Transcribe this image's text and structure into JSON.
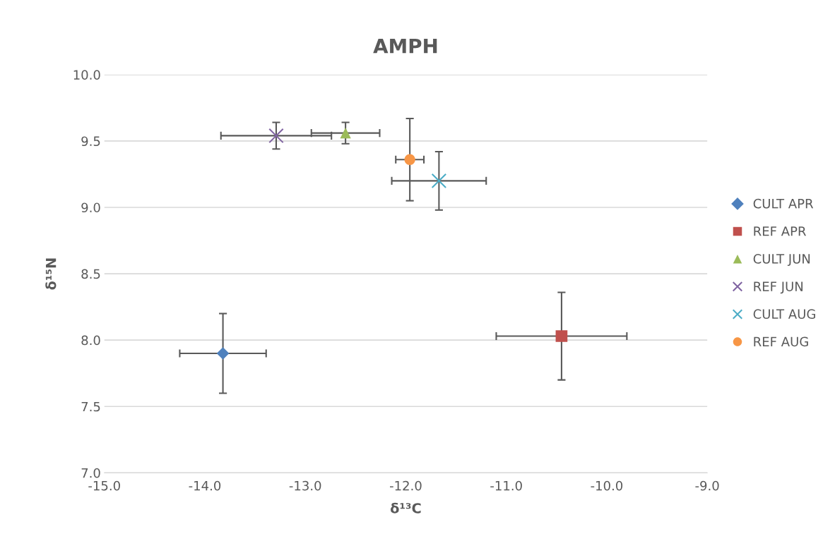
{
  "chart_data": {
    "type": "scatter",
    "title": "AMPH",
    "xlabel": "δ¹³C",
    "ylabel": "δ¹⁵N",
    "xlim": [
      -15.0,
      -9.0
    ],
    "xticks": [
      {
        "value": -15,
        "label": "-15.0"
      },
      {
        "value": -14,
        "label": "-14.0"
      },
      {
        "value": -13,
        "label": "-13.0"
      },
      {
        "value": -12,
        "label": "-12.0"
      },
      {
        "value": -11,
        "label": "-11.0"
      },
      {
        "value": -10,
        "label": "-10.0"
      },
      {
        "value": -9,
        "label": "-9.0"
      }
    ],
    "ylim": [
      7.0,
      10.0
    ],
    "yticks": [
      {
        "value": 7,
        "label": "7.0"
      },
      7.5,
      {
        "value": 8,
        "label": "8.0"
      },
      8.5,
      {
        "value": 9,
        "label": "9.0"
      },
      9.5,
      {
        "value": 10,
        "label": "10.0"
      }
    ],
    "grid": "y",
    "legend": "right",
    "series": [
      {
        "name": "CULT APR",
        "color": "#4f81bd",
        "marker": "diamond",
        "x": [
          -13.82
        ],
        "values": [
          7.9
        ],
        "xerrors": [
          0.43
        ],
        "errors": [
          0.3
        ]
      },
      {
        "name": "REF APR",
        "color": "#c0504d",
        "marker": "square",
        "x": [
          -10.45
        ],
        "values": [
          8.03
        ],
        "xerrors": [
          0.65
        ],
        "errors": [
          0.33
        ]
      },
      {
        "name": "CULT JUN",
        "color": "#9bbb59",
        "marker": "triangle",
        "x": [
          -12.6
        ],
        "values": [
          9.56
        ],
        "xerrors": [
          0.34
        ],
        "errors": [
          0.08
        ]
      },
      {
        "name": "REF JUN",
        "color": "#8064a2",
        "marker": "cross",
        "x": [
          -13.29
        ],
        "values": [
          9.54
        ],
        "xerrors": [
          0.55
        ],
        "errors": [
          0.1
        ]
      },
      {
        "name": "CULT AUG",
        "color": "#4bacc6",
        "marker": "cross",
        "x": [
          -11.67
        ],
        "values": [
          9.2
        ],
        "xerrors": [
          0.47
        ],
        "errors": [
          0.22
        ]
      },
      {
        "name": "REF AUG",
        "color": "#f79646",
        "marker": "circle",
        "x": [
          -11.96
        ],
        "values": [
          9.36
        ],
        "xerrors": [
          0.14
        ],
        "errors": [
          0.31
        ]
      }
    ]
  }
}
